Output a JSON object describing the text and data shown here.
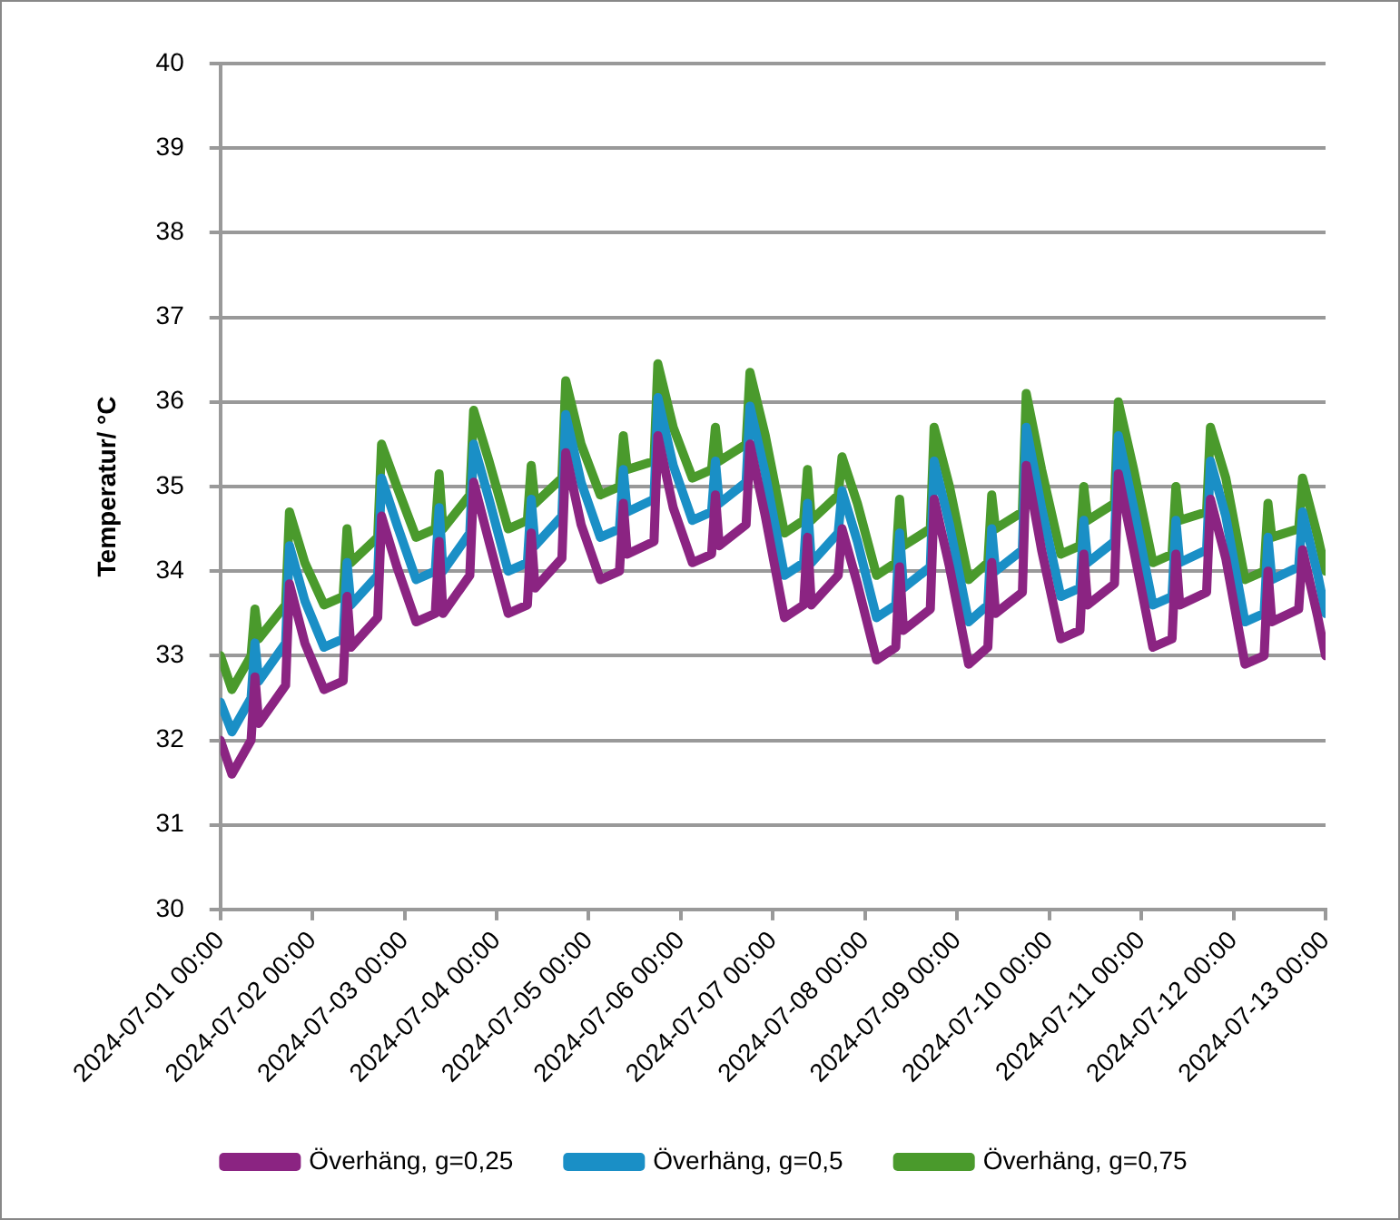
{
  "chart_data": {
    "type": "line",
    "ylabel": "Temperatur/ °C",
    "x": [
      "2024-07-01T00:00",
      "2024-07-01T03:00",
      "2024-07-01T08:00",
      "2024-07-01T09:00",
      "2024-07-01T10:00",
      "2024-07-01T17:00",
      "2024-07-01T18:00",
      "2024-07-01T22:00",
      "2024-07-02T03:00",
      "2024-07-02T08:00",
      "2024-07-02T09:00",
      "2024-07-02T10:00",
      "2024-07-02T17:00",
      "2024-07-02T18:00",
      "2024-07-02T22:00",
      "2024-07-03T03:00",
      "2024-07-03T08:00",
      "2024-07-03T09:00",
      "2024-07-03T10:00",
      "2024-07-03T17:00",
      "2024-07-03T18:00",
      "2024-07-03T22:00",
      "2024-07-04T03:00",
      "2024-07-04T08:00",
      "2024-07-04T09:00",
      "2024-07-04T10:00",
      "2024-07-04T17:00",
      "2024-07-04T18:00",
      "2024-07-04T22:00",
      "2024-07-05T03:00",
      "2024-07-05T08:00",
      "2024-07-05T09:00",
      "2024-07-05T10:00",
      "2024-07-05T17:00",
      "2024-07-05T18:00",
      "2024-07-05T22:00",
      "2024-07-06T03:00",
      "2024-07-06T08:00",
      "2024-07-06T09:00",
      "2024-07-06T10:00",
      "2024-07-06T17:00",
      "2024-07-06T18:00",
      "2024-07-06T22:00",
      "2024-07-07T03:00",
      "2024-07-07T08:00",
      "2024-07-07T09:00",
      "2024-07-07T10:00",
      "2024-07-07T17:00",
      "2024-07-07T18:00",
      "2024-07-07T22:00",
      "2024-07-08T03:00",
      "2024-07-08T08:00",
      "2024-07-08T09:00",
      "2024-07-08T10:00",
      "2024-07-08T17:00",
      "2024-07-08T18:00",
      "2024-07-08T22:00",
      "2024-07-09T03:00",
      "2024-07-09T08:00",
      "2024-07-09T09:00",
      "2024-07-09T10:00",
      "2024-07-09T17:00",
      "2024-07-09T18:00",
      "2024-07-09T22:00",
      "2024-07-10T03:00",
      "2024-07-10T08:00",
      "2024-07-10T09:00",
      "2024-07-10T10:00",
      "2024-07-10T17:00",
      "2024-07-10T18:00",
      "2024-07-10T22:00",
      "2024-07-11T03:00",
      "2024-07-11T08:00",
      "2024-07-11T09:00",
      "2024-07-11T10:00",
      "2024-07-11T17:00",
      "2024-07-11T18:00",
      "2024-07-11T22:00",
      "2024-07-12T03:00",
      "2024-07-12T08:00",
      "2024-07-12T09:00",
      "2024-07-12T10:00",
      "2024-07-12T17:00",
      "2024-07-12T18:00",
      "2024-07-12T22:00",
      "2024-07-13T00:00"
    ],
    "series": [
      {
        "name": "Överhäng, g=0,25",
        "color": "#8b2482",
        "values": [
          32.0,
          31.6,
          32.0,
          32.75,
          32.2,
          32.65,
          33.85,
          33.15,
          32.6,
          32.7,
          33.7,
          33.1,
          33.45,
          34.65,
          34.05,
          33.4,
          33.5,
          34.35,
          33.5,
          33.95,
          35.05,
          34.35,
          33.5,
          33.6,
          34.45,
          33.8,
          34.15,
          35.4,
          34.55,
          33.9,
          34.0,
          34.8,
          34.2,
          34.35,
          35.6,
          34.75,
          34.1,
          34.2,
          34.9,
          34.3,
          34.55,
          35.5,
          34.65,
          33.45,
          33.6,
          34.4,
          33.6,
          33.95,
          34.5,
          33.85,
          32.95,
          33.1,
          34.05,
          33.3,
          33.55,
          34.85,
          34.05,
          32.9,
          33.1,
          34.1,
          33.5,
          33.75,
          35.25,
          34.25,
          33.2,
          33.3,
          34.2,
          33.6,
          33.85,
          35.15,
          34.25,
          33.1,
          33.2,
          34.2,
          33.6,
          33.75,
          34.85,
          34.15,
          32.9,
          33.0,
          34.0,
          33.4,
          33.55,
          34.25,
          33.45,
          33.0
        ]
      },
      {
        "name": "Överhäng, g=0,5",
        "color": "#1a8fc6",
        "values": [
          32.45,
          32.1,
          32.5,
          33.15,
          32.7,
          33.15,
          34.3,
          33.65,
          33.1,
          33.2,
          34.1,
          33.6,
          33.95,
          35.1,
          34.55,
          33.9,
          34.0,
          34.75,
          34.0,
          34.45,
          35.5,
          34.85,
          34.0,
          34.1,
          34.85,
          34.3,
          34.65,
          35.85,
          35.05,
          34.4,
          34.5,
          35.2,
          34.7,
          34.85,
          36.05,
          35.25,
          34.6,
          34.7,
          35.3,
          34.8,
          35.05,
          35.95,
          35.15,
          33.95,
          34.1,
          34.8,
          34.1,
          34.45,
          34.95,
          34.35,
          33.45,
          33.6,
          34.45,
          33.8,
          34.05,
          35.3,
          34.55,
          33.4,
          33.6,
          34.5,
          34.0,
          34.25,
          35.7,
          34.75,
          33.7,
          33.8,
          34.6,
          34.1,
          34.35,
          35.6,
          34.75,
          33.6,
          33.7,
          34.6,
          34.1,
          34.25,
          35.3,
          34.65,
          33.4,
          33.5,
          34.4,
          33.9,
          34.05,
          34.7,
          33.95,
          33.5
        ]
      },
      {
        "name": "Överhäng, g=0,75",
        "color": "#4a9a2c",
        "values": [
          33.0,
          32.6,
          33.0,
          33.55,
          33.2,
          33.6,
          34.7,
          34.1,
          33.6,
          33.7,
          34.5,
          34.1,
          34.4,
          35.5,
          35.0,
          34.4,
          34.5,
          35.15,
          34.5,
          34.9,
          35.9,
          35.3,
          34.5,
          34.6,
          35.25,
          34.8,
          35.1,
          36.25,
          35.5,
          34.9,
          35.0,
          35.6,
          35.2,
          35.3,
          36.45,
          35.7,
          35.1,
          35.2,
          35.7,
          35.3,
          35.5,
          36.35,
          35.6,
          34.45,
          34.6,
          35.2,
          34.6,
          34.9,
          35.35,
          34.8,
          33.95,
          34.1,
          34.85,
          34.3,
          34.5,
          35.7,
          35.0,
          33.9,
          34.1,
          34.9,
          34.5,
          34.7,
          36.1,
          35.2,
          34.2,
          34.3,
          35.0,
          34.6,
          34.8,
          36.0,
          35.2,
          34.1,
          34.2,
          35.0,
          34.6,
          34.7,
          35.7,
          35.1,
          33.9,
          34.0,
          34.8,
          34.4,
          34.5,
          35.1,
          34.4,
          34.0
        ]
      }
    ],
    "xlim": [
      "2024-07-01T00:00",
      "2024-07-13T00:00"
    ],
    "xticks": [
      {
        "value": "2024-07-01T00:00",
        "label": "2024-07-01 00:00"
      },
      {
        "value": "2024-07-02T00:00",
        "label": "2024-07-02 00:00"
      },
      {
        "value": "2024-07-03T00:00",
        "label": "2024-07-03 00:00"
      },
      {
        "value": "2024-07-04T00:00",
        "label": "2024-07-04 00:00"
      },
      {
        "value": "2024-07-05T00:00",
        "label": "2024-07-05 00:00"
      },
      {
        "value": "2024-07-06T00:00",
        "label": "2024-07-06 00:00"
      },
      {
        "value": "2024-07-07T00:00",
        "label": "2024-07-07 00:00"
      },
      {
        "value": "2024-07-08T00:00",
        "label": "2024-07-08 00:00"
      },
      {
        "value": "2024-07-09T00:00",
        "label": "2024-07-09 00:00"
      },
      {
        "value": "2024-07-10T00:00",
        "label": "2024-07-10 00:00"
      },
      {
        "value": "2024-07-11T00:00",
        "label": "2024-07-11 00:00"
      },
      {
        "value": "2024-07-12T00:00",
        "label": "2024-07-12 00:00"
      },
      {
        "value": "2024-07-13T00:00",
        "label": "2024-07-13 00:00"
      }
    ],
    "ylim": [
      30,
      40
    ],
    "yticks": [
      30,
      31,
      32,
      33,
      34,
      35,
      36,
      37,
      38,
      39,
      40
    ],
    "grid": "y",
    "legend": "bottom",
    "marker": "none",
    "line_style": "solid"
  }
}
